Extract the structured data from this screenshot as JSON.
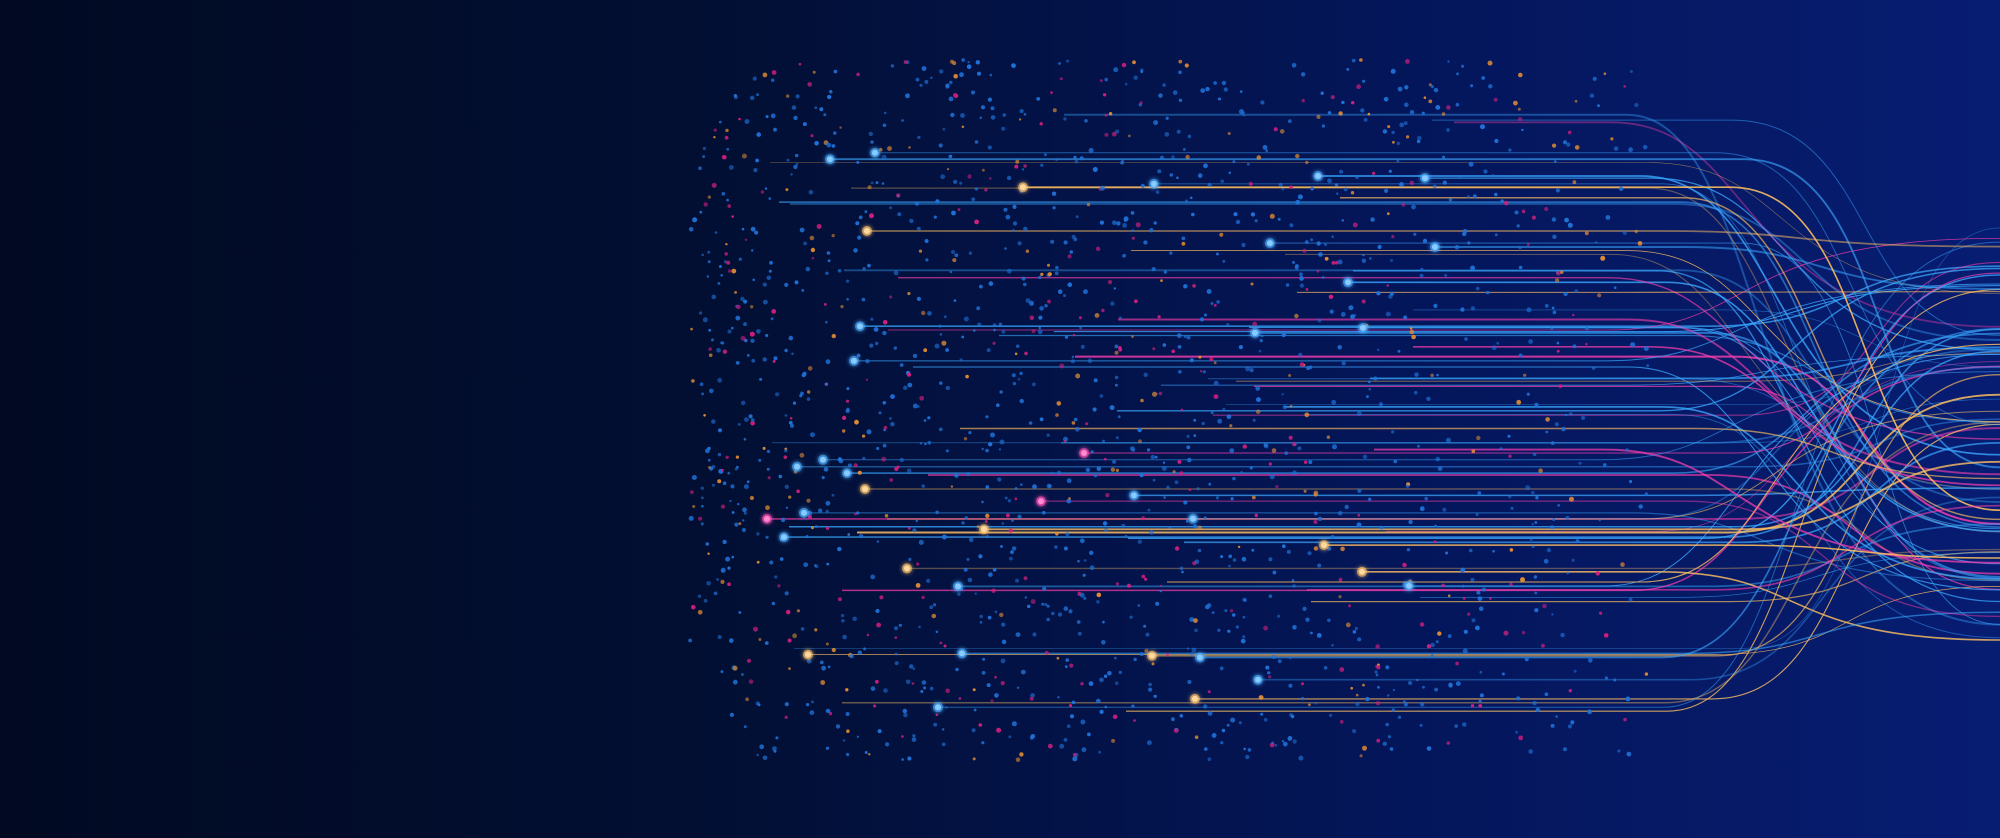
{
  "image": {
    "subject": "abstract-data-stream",
    "colors": {
      "background_left": "#010a22",
      "background_right": "#071d72",
      "dot_blue": "#1f72d8",
      "dot_pink": "#d21f7e",
      "dot_orange": "#e08c34",
      "line_cyan": "#3aa8ff",
      "line_pink": "#ff3fb0",
      "line_gold": "#ffc060"
    }
  }
}
